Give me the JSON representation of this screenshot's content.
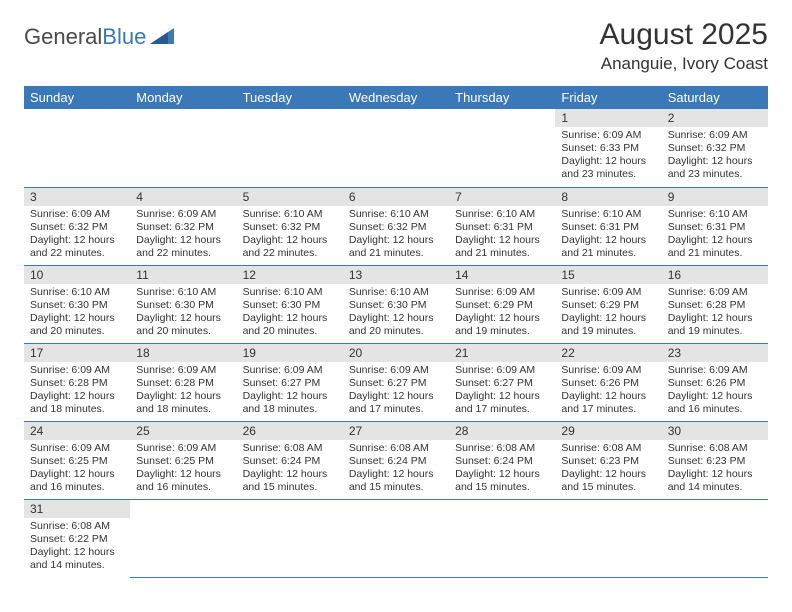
{
  "brand": {
    "part1": "General",
    "part2": "Blue"
  },
  "title": "August 2025",
  "location": "Ananguie, Ivory Coast",
  "colors": {
    "header_bg": "#3b78b8",
    "header_text": "#ffffff",
    "daynum_bg": "#e4e4e4",
    "border": "#3b78b8",
    "text": "#333333",
    "background": "#ffffff"
  },
  "weekdays": [
    "Sunday",
    "Monday",
    "Tuesday",
    "Wednesday",
    "Thursday",
    "Friday",
    "Saturday"
  ],
  "weeks": [
    [
      null,
      null,
      null,
      null,
      null,
      {
        "n": "1",
        "sr": "Sunrise: 6:09 AM",
        "ss": "Sunset: 6:33 PM",
        "d1": "Daylight: 12 hours",
        "d2": "and 23 minutes."
      },
      {
        "n": "2",
        "sr": "Sunrise: 6:09 AM",
        "ss": "Sunset: 6:32 PM",
        "d1": "Daylight: 12 hours",
        "d2": "and 23 minutes."
      }
    ],
    [
      {
        "n": "3",
        "sr": "Sunrise: 6:09 AM",
        "ss": "Sunset: 6:32 PM",
        "d1": "Daylight: 12 hours",
        "d2": "and 22 minutes."
      },
      {
        "n": "4",
        "sr": "Sunrise: 6:09 AM",
        "ss": "Sunset: 6:32 PM",
        "d1": "Daylight: 12 hours",
        "d2": "and 22 minutes."
      },
      {
        "n": "5",
        "sr": "Sunrise: 6:10 AM",
        "ss": "Sunset: 6:32 PM",
        "d1": "Daylight: 12 hours",
        "d2": "and 22 minutes."
      },
      {
        "n": "6",
        "sr": "Sunrise: 6:10 AM",
        "ss": "Sunset: 6:32 PM",
        "d1": "Daylight: 12 hours",
        "d2": "and 21 minutes."
      },
      {
        "n": "7",
        "sr": "Sunrise: 6:10 AM",
        "ss": "Sunset: 6:31 PM",
        "d1": "Daylight: 12 hours",
        "d2": "and 21 minutes."
      },
      {
        "n": "8",
        "sr": "Sunrise: 6:10 AM",
        "ss": "Sunset: 6:31 PM",
        "d1": "Daylight: 12 hours",
        "d2": "and 21 minutes."
      },
      {
        "n": "9",
        "sr": "Sunrise: 6:10 AM",
        "ss": "Sunset: 6:31 PM",
        "d1": "Daylight: 12 hours",
        "d2": "and 21 minutes."
      }
    ],
    [
      {
        "n": "10",
        "sr": "Sunrise: 6:10 AM",
        "ss": "Sunset: 6:30 PM",
        "d1": "Daylight: 12 hours",
        "d2": "and 20 minutes."
      },
      {
        "n": "11",
        "sr": "Sunrise: 6:10 AM",
        "ss": "Sunset: 6:30 PM",
        "d1": "Daylight: 12 hours",
        "d2": "and 20 minutes."
      },
      {
        "n": "12",
        "sr": "Sunrise: 6:10 AM",
        "ss": "Sunset: 6:30 PM",
        "d1": "Daylight: 12 hours",
        "d2": "and 20 minutes."
      },
      {
        "n": "13",
        "sr": "Sunrise: 6:10 AM",
        "ss": "Sunset: 6:30 PM",
        "d1": "Daylight: 12 hours",
        "d2": "and 20 minutes."
      },
      {
        "n": "14",
        "sr": "Sunrise: 6:09 AM",
        "ss": "Sunset: 6:29 PM",
        "d1": "Daylight: 12 hours",
        "d2": "and 19 minutes."
      },
      {
        "n": "15",
        "sr": "Sunrise: 6:09 AM",
        "ss": "Sunset: 6:29 PM",
        "d1": "Daylight: 12 hours",
        "d2": "and 19 minutes."
      },
      {
        "n": "16",
        "sr": "Sunrise: 6:09 AM",
        "ss": "Sunset: 6:28 PM",
        "d1": "Daylight: 12 hours",
        "d2": "and 19 minutes."
      }
    ],
    [
      {
        "n": "17",
        "sr": "Sunrise: 6:09 AM",
        "ss": "Sunset: 6:28 PM",
        "d1": "Daylight: 12 hours",
        "d2": "and 18 minutes."
      },
      {
        "n": "18",
        "sr": "Sunrise: 6:09 AM",
        "ss": "Sunset: 6:28 PM",
        "d1": "Daylight: 12 hours",
        "d2": "and 18 minutes."
      },
      {
        "n": "19",
        "sr": "Sunrise: 6:09 AM",
        "ss": "Sunset: 6:27 PM",
        "d1": "Daylight: 12 hours",
        "d2": "and 18 minutes."
      },
      {
        "n": "20",
        "sr": "Sunrise: 6:09 AM",
        "ss": "Sunset: 6:27 PM",
        "d1": "Daylight: 12 hours",
        "d2": "and 17 minutes."
      },
      {
        "n": "21",
        "sr": "Sunrise: 6:09 AM",
        "ss": "Sunset: 6:27 PM",
        "d1": "Daylight: 12 hours",
        "d2": "and 17 minutes."
      },
      {
        "n": "22",
        "sr": "Sunrise: 6:09 AM",
        "ss": "Sunset: 6:26 PM",
        "d1": "Daylight: 12 hours",
        "d2": "and 17 minutes."
      },
      {
        "n": "23",
        "sr": "Sunrise: 6:09 AM",
        "ss": "Sunset: 6:26 PM",
        "d1": "Daylight: 12 hours",
        "d2": "and 16 minutes."
      }
    ],
    [
      {
        "n": "24",
        "sr": "Sunrise: 6:09 AM",
        "ss": "Sunset: 6:25 PM",
        "d1": "Daylight: 12 hours",
        "d2": "and 16 minutes."
      },
      {
        "n": "25",
        "sr": "Sunrise: 6:09 AM",
        "ss": "Sunset: 6:25 PM",
        "d1": "Daylight: 12 hours",
        "d2": "and 16 minutes."
      },
      {
        "n": "26",
        "sr": "Sunrise: 6:08 AM",
        "ss": "Sunset: 6:24 PM",
        "d1": "Daylight: 12 hours",
        "d2": "and 15 minutes."
      },
      {
        "n": "27",
        "sr": "Sunrise: 6:08 AM",
        "ss": "Sunset: 6:24 PM",
        "d1": "Daylight: 12 hours",
        "d2": "and 15 minutes."
      },
      {
        "n": "28",
        "sr": "Sunrise: 6:08 AM",
        "ss": "Sunset: 6:24 PM",
        "d1": "Daylight: 12 hours",
        "d2": "and 15 minutes."
      },
      {
        "n": "29",
        "sr": "Sunrise: 6:08 AM",
        "ss": "Sunset: 6:23 PM",
        "d1": "Daylight: 12 hours",
        "d2": "and 15 minutes."
      },
      {
        "n": "30",
        "sr": "Sunrise: 6:08 AM",
        "ss": "Sunset: 6:23 PM",
        "d1": "Daylight: 12 hours",
        "d2": "and 14 minutes."
      }
    ],
    [
      {
        "n": "31",
        "sr": "Sunrise: 6:08 AM",
        "ss": "Sunset: 6:22 PM",
        "d1": "Daylight: 12 hours",
        "d2": "and 14 minutes."
      },
      null,
      null,
      null,
      null,
      null,
      null
    ]
  ]
}
